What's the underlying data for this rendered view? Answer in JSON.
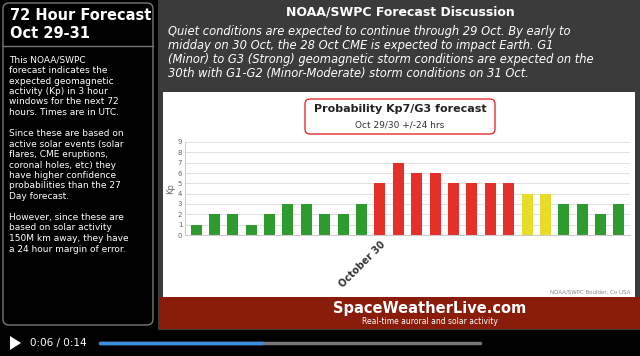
{
  "header": {
    "title": "72 Hour Forecast",
    "subtitle": "Oct 29-31"
  },
  "side_panel": {
    "paragraphs": [
      [
        "This NOAA/SWPC",
        "forecast indicates the",
        "expected geomagnetic",
        "activity (Kp) in 3 hour",
        "windows for the next 72",
        "hours. Times are in UTC."
      ],
      [
        "Since these are based on",
        "active solar events (solar",
        "flares, CME eruptions,",
        "coronal holes, etc) they",
        "have higher confidence",
        "probabilities than the 27",
        "Day forecast."
      ],
      [
        "However, since these are",
        "based on solar activity",
        "150M km away, they have",
        "a 24 hour margin of error."
      ]
    ]
  },
  "discussion": {
    "title": "NOAA/SWPC Forecast Discussion",
    "lines": [
      "Quiet conditions are expected to continue through 29 Oct. By early to",
      "midday on 30 Oct, the 28 Oct CME is expected to impact Earth. G1",
      "(Minor) to G3 (Strong) geomagnetic storm conditions are expected on the",
      "30th with G1-G2 (Minor-Moderate) storm conditions on 31 Oct."
    ]
  },
  "chart_data": {
    "type": "bar",
    "title": "Probability Kp7/G3 forecast",
    "subtitle": "Oct 29/30 +/-24 hrs",
    "ylabel": "Kp",
    "source": "NOAA/SWPC Boulder, Co USA",
    "categories": [
      null,
      null,
      null,
      null,
      null,
      null,
      null,
      null,
      null,
      null,
      "October 30",
      null,
      null,
      null,
      null,
      null,
      null,
      null,
      null,
      null,
      null,
      null,
      null,
      null
    ],
    "values": [
      1,
      2,
      2,
      1,
      2,
      3,
      3,
      2,
      2,
      3,
      5,
      7,
      6,
      6,
      5,
      5,
      5,
      5,
      4,
      4,
      3,
      3,
      2,
      3
    ],
    "colors": [
      "#2e9b2e",
      "#2e9b2e",
      "#2e9b2e",
      "#2e9b2e",
      "#2e9b2e",
      "#2e9b2e",
      "#2e9b2e",
      "#2e9b2e",
      "#2e9b2e",
      "#2e9b2e",
      "#e5302a",
      "#e5302a",
      "#e5302a",
      "#e5302a",
      "#e5302a",
      "#e5302a",
      "#e5302a",
      "#e5302a",
      "#e8dc2a",
      "#e8dc2a",
      "#2e9b2e",
      "#2e9b2e",
      "#2e9b2e",
      "#2e9b2e"
    ],
    "ylim": [
      0,
      9
    ],
    "yticks": [
      0,
      1,
      2,
      3,
      4,
      5,
      6,
      7,
      8,
      9
    ],
    "grid": true
  },
  "banner": {
    "title": "SpaceWeatherLive.com",
    "subtitle": "Real-time auroral and solar activity"
  },
  "player": {
    "time": "0:06 / 0:14"
  }
}
